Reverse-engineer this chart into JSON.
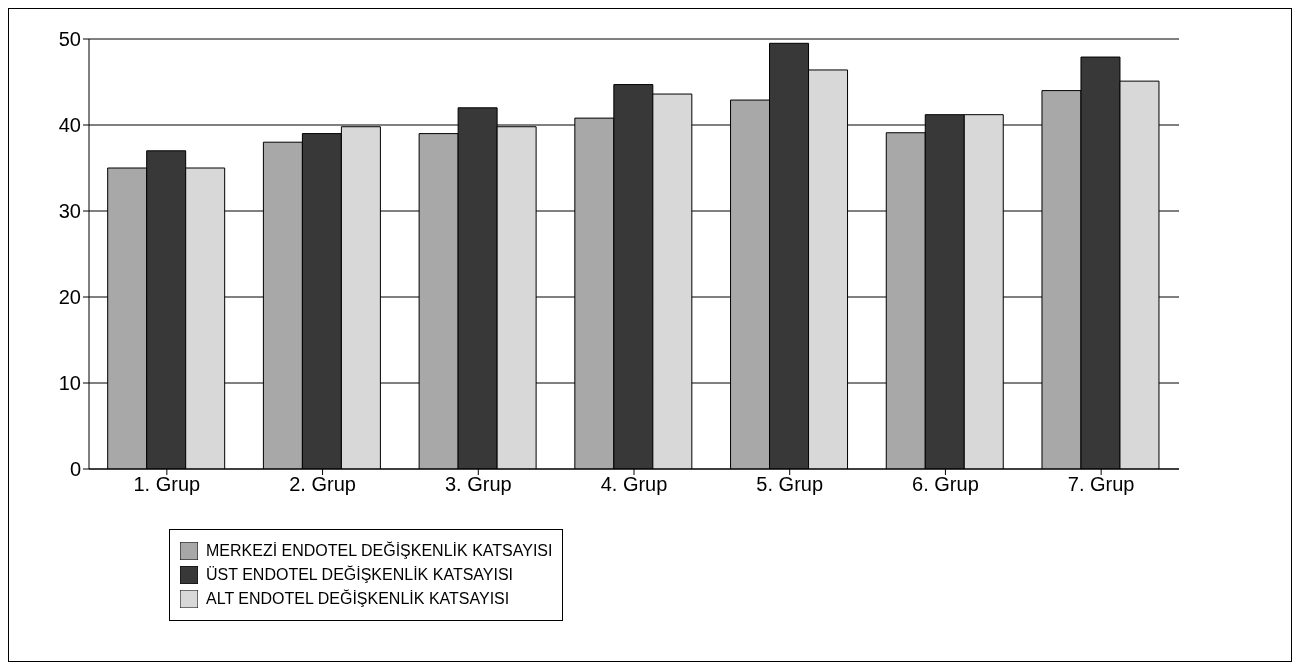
{
  "chart_data": {
    "type": "bar",
    "categories": [
      "1. Grup",
      "2. Grup",
      "3. Grup",
      "4. Grup",
      "5. Grup",
      "6. Grup",
      "7. Grup"
    ],
    "series": [
      {
        "name": "MERKEZİ ENDOTEL DEĞİŞKENLİK KATSAYISI",
        "color": "#a8a8a8",
        "values": [
          35,
          38,
          39,
          40.8,
          42.9,
          39.1,
          44
        ]
      },
      {
        "name": "ÜST ENDOTEL  DEĞİŞKENLİK KATSAYISI",
        "color": "#383838",
        "values": [
          37,
          39,
          42,
          44.7,
          49.5,
          41.2,
          47.9
        ]
      },
      {
        "name": "ALT ENDOTEL DEĞİŞKENLİK KATSAYISI",
        "color": "#d8d8d8",
        "values": [
          35,
          39.8,
          39.8,
          43.6,
          46.4,
          41.2,
          45.1
        ]
      }
    ],
    "ylim": [
      0,
      50
    ],
    "yticks": [
      0,
      10,
      20,
      30,
      40,
      50
    ],
    "grid": "y",
    "legend": "bottom left"
  }
}
